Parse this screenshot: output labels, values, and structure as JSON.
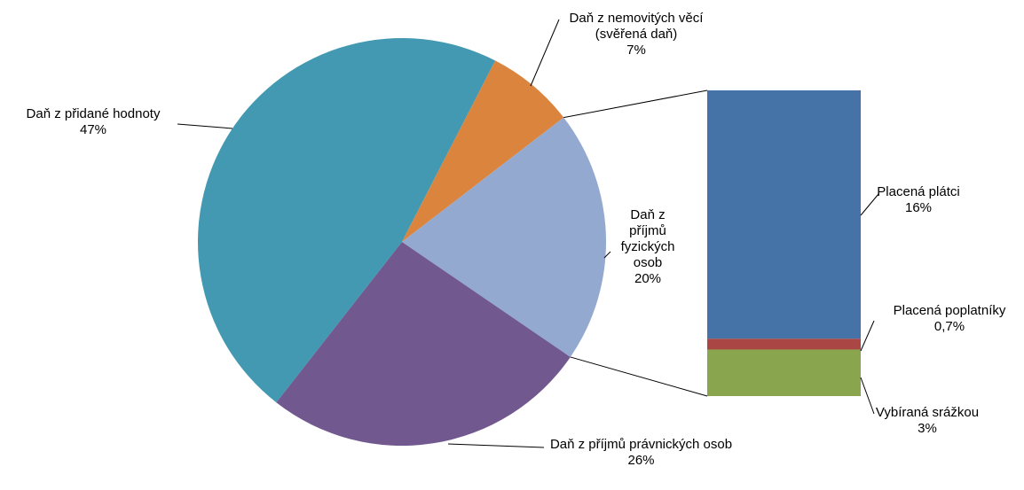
{
  "chart_data": {
    "type": "pie",
    "categories": [
      "Daň z přidané hodnoty",
      "Daň z nemovitých věcí (svěřená daň)",
      "Daň z příjmů fyzických osob",
      "Daň z příjmů právnických osob"
    ],
    "values": [
      47,
      7,
      20,
      26
    ],
    "value_labels": [
      "47%",
      "7%",
      "20%",
      "26%"
    ],
    "colors": [
      "#4399b1",
      "#db843d",
      "#93a9cf",
      "#71588f"
    ],
    "breakdown": {
      "categories": [
        "Placená plátci",
        "Placená poplatníky",
        "Vybíraná srážkou"
      ],
      "values": [
        16,
        0.7,
        3
      ],
      "value_labels": [
        "16%",
        "0,7%",
        "3%"
      ],
      "colors": [
        "#4572a7",
        "#aa4643",
        "#89a54e"
      ]
    }
  }
}
